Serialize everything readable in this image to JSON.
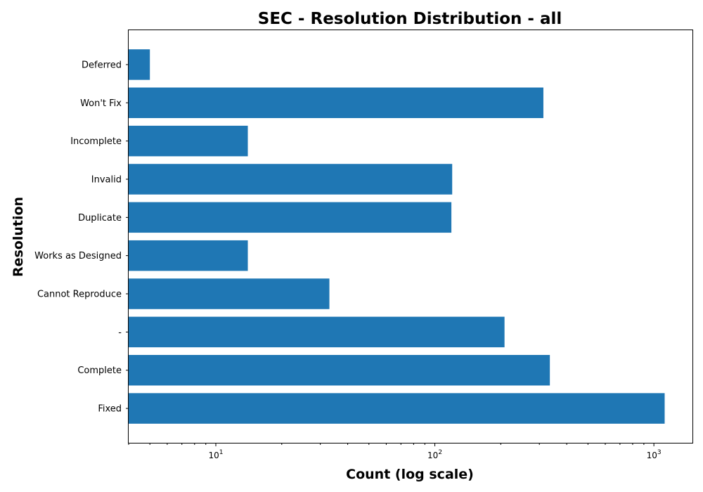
{
  "chart_data": {
    "type": "bar",
    "orientation": "horizontal",
    "title": "SEC - Resolution Distribution - all",
    "xlabel": "Count (log scale)",
    "ylabel": "Resolution",
    "x_scale": "log",
    "xlim": [
      4,
      1500
    ],
    "x_ticks": [
      {
        "value": 10,
        "base": "10",
        "exp": "1"
      },
      {
        "value": 100,
        "base": "10",
        "exp": "2"
      },
      {
        "value": 1000,
        "base": "10",
        "exp": "3"
      }
    ],
    "categories": [
      "Fixed",
      "Complete",
      "-",
      "Cannot Reproduce",
      "Works as Designed",
      "Duplicate",
      "Invalid",
      "Incomplete",
      "Won't Fix",
      "Deferred"
    ],
    "values": [
      1120,
      335,
      208,
      33,
      14,
      119,
      120,
      14,
      313,
      5
    ],
    "bar_color": "#1f77b4",
    "grid": false,
    "legend": "none"
  }
}
